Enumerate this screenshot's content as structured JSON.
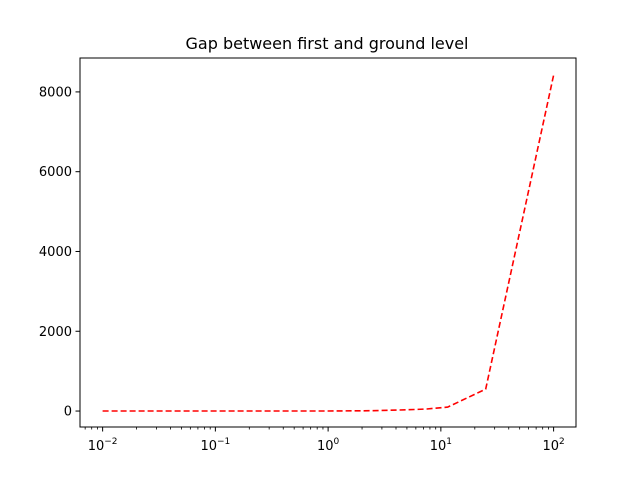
{
  "chart_data": {
    "type": "line",
    "title": "Gap between first and ground level",
    "xlabel": "",
    "ylabel": "",
    "xscale": "log",
    "xlim": [
      0.0063,
      158
    ],
    "ylim": [
      -400,
      8850
    ],
    "grid": false,
    "legend": "none",
    "x_ticks": [
      {
        "base": "10",
        "exp": "−2",
        "value": 0.01
      },
      {
        "base": "10",
        "exp": "−1",
        "value": 0.1
      },
      {
        "base": "10",
        "exp": "0",
        "value": 1
      },
      {
        "base": "10",
        "exp": "1",
        "value": 10
      },
      {
        "base": "10",
        "exp": "2",
        "value": 100
      }
    ],
    "y_ticks": [
      {
        "label": "0",
        "value": 0
      },
      {
        "label": "2000",
        "value": 2000
      },
      {
        "label": "4000",
        "value": 4000
      },
      {
        "label": "6000",
        "value": 6000
      },
      {
        "label": "8000",
        "value": 8000
      }
    ],
    "series": [
      {
        "name": "",
        "color": "#ff0000",
        "linestyle": "dashed",
        "x": [
          0.01,
          0.0316,
          0.1,
          0.316,
          1,
          2.5,
          5,
          7.5,
          11.5,
          25,
          100
        ],
        "y": [
          0,
          0,
          0,
          0,
          0,
          8,
          30,
          50,
          100,
          550,
          8420
        ]
      }
    ]
  }
}
